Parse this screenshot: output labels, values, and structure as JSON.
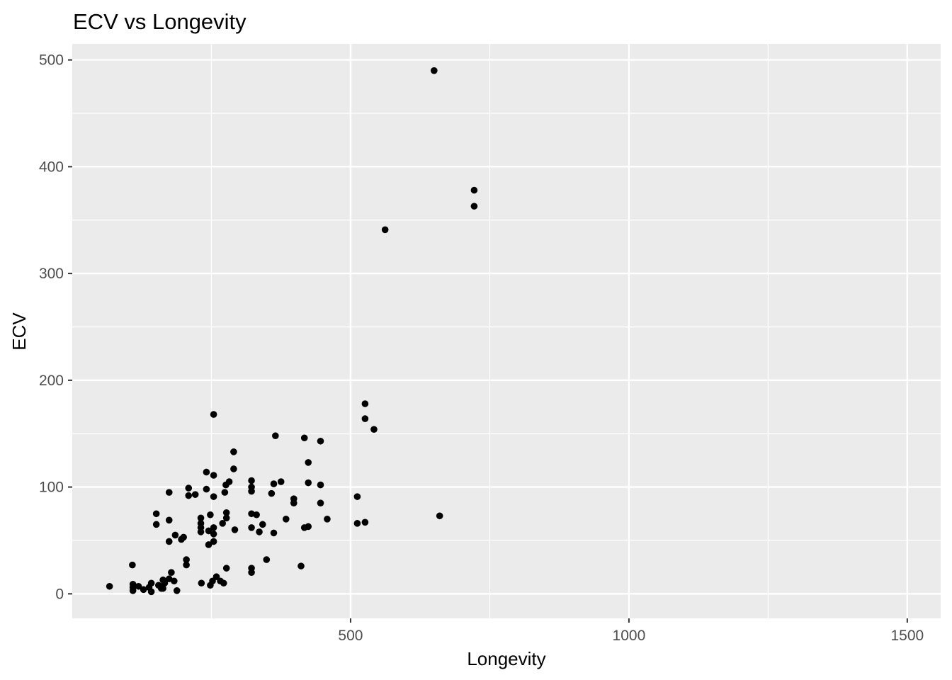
{
  "chart_data": {
    "type": "scatter",
    "title": "ECV vs Longevity",
    "xlabel": "Longevity",
    "ylabel": "ECV",
    "xlim": [
      0,
      1560
    ],
    "ylim": [
      -23,
      515
    ],
    "x_major_ticks": [
      500,
      1000,
      1500
    ],
    "x_minor_ticks": [
      250,
      750,
      1250
    ],
    "y_major_ticks": [
      0,
      100,
      200,
      300,
      400,
      500
    ],
    "y_minor_ticks": [
      50,
      150,
      250,
      350,
      450
    ],
    "x_tick_labels": [
      "500",
      "1000",
      "1500"
    ],
    "y_tick_labels": [
      "0",
      "100",
      "200",
      "300",
      "400",
      "500"
    ],
    "grid": true,
    "legend": "none",
    "colors": {
      "panel": "#ebebeb",
      "grid": "#ffffff",
      "point": "#000000"
    },
    "points": [
      {
        "x": 67,
        "y": 7
      },
      {
        "x": 108,
        "y": 27
      },
      {
        "x": 109,
        "y": 9
      },
      {
        "x": 109,
        "y": 6
      },
      {
        "x": 109,
        "y": 3
      },
      {
        "x": 119,
        "y": 7
      },
      {
        "x": 128,
        "y": 4
      },
      {
        "x": 138,
        "y": 6
      },
      {
        "x": 142,
        "y": 2
      },
      {
        "x": 142,
        "y": 10
      },
      {
        "x": 151,
        "y": 75
      },
      {
        "x": 151,
        "y": 65
      },
      {
        "x": 155,
        "y": 8
      },
      {
        "x": 160,
        "y": 5
      },
      {
        "x": 163,
        "y": 13
      },
      {
        "x": 163,
        "y": 5
      },
      {
        "x": 166,
        "y": 10
      },
      {
        "x": 174,
        "y": 95
      },
      {
        "x": 174,
        "y": 69
      },
      {
        "x": 174,
        "y": 49
      },
      {
        "x": 174,
        "y": 14
      },
      {
        "x": 178,
        "y": 20
      },
      {
        "x": 183,
        "y": 12
      },
      {
        "x": 185,
        "y": 55
      },
      {
        "x": 188,
        "y": 3
      },
      {
        "x": 196,
        "y": 51
      },
      {
        "x": 200,
        "y": 53
      },
      {
        "x": 205,
        "y": 27
      },
      {
        "x": 205,
        "y": 32
      },
      {
        "x": 209,
        "y": 99
      },
      {
        "x": 209,
        "y": 92
      },
      {
        "x": 221,
        "y": 93
      },
      {
        "x": 231,
        "y": 71
      },
      {
        "x": 231,
        "y": 66
      },
      {
        "x": 231,
        "y": 62
      },
      {
        "x": 231,
        "y": 58
      },
      {
        "x": 232,
        "y": 10
      },
      {
        "x": 241,
        "y": 114
      },
      {
        "x": 241,
        "y": 98
      },
      {
        "x": 245,
        "y": 59
      },
      {
        "x": 245,
        "y": 46
      },
      {
        "x": 248,
        "y": 74
      },
      {
        "x": 248,
        "y": 8
      },
      {
        "x": 252,
        "y": 12
      },
      {
        "x": 254,
        "y": 168
      },
      {
        "x": 254,
        "y": 111
      },
      {
        "x": 254,
        "y": 91
      },
      {
        "x": 254,
        "y": 62
      },
      {
        "x": 254,
        "y": 56
      },
      {
        "x": 254,
        "y": 49
      },
      {
        "x": 259,
        "y": 16
      },
      {
        "x": 266,
        "y": 12
      },
      {
        "x": 270,
        "y": 66
      },
      {
        "x": 272,
        "y": 10
      },
      {
        "x": 274,
        "y": 95
      },
      {
        "x": 276,
        "y": 102
      },
      {
        "x": 277,
        "y": 76
      },
      {
        "x": 277,
        "y": 71
      },
      {
        "x": 277,
        "y": 24
      },
      {
        "x": 282,
        "y": 105
      },
      {
        "x": 290,
        "y": 133
      },
      {
        "x": 290,
        "y": 117
      },
      {
        "x": 292,
        "y": 60
      },
      {
        "x": 322,
        "y": 106
      },
      {
        "x": 322,
        "y": 100
      },
      {
        "x": 322,
        "y": 96
      },
      {
        "x": 322,
        "y": 75
      },
      {
        "x": 322,
        "y": 62
      },
      {
        "x": 322,
        "y": 24
      },
      {
        "x": 322,
        "y": 20
      },
      {
        "x": 331,
        "y": 74
      },
      {
        "x": 336,
        "y": 58
      },
      {
        "x": 342,
        "y": 65
      },
      {
        "x": 349,
        "y": 32
      },
      {
        "x": 358,
        "y": 94
      },
      {
        "x": 362,
        "y": 103
      },
      {
        "x": 362,
        "y": 57
      },
      {
        "x": 365,
        "y": 148
      },
      {
        "x": 375,
        "y": 105
      },
      {
        "x": 384,
        "y": 70
      },
      {
        "x": 398,
        "y": 89
      },
      {
        "x": 398,
        "y": 85
      },
      {
        "x": 411,
        "y": 26
      },
      {
        "x": 417,
        "y": 146
      },
      {
        "x": 417,
        "y": 62
      },
      {
        "x": 424,
        "y": 123
      },
      {
        "x": 424,
        "y": 104
      },
      {
        "x": 424,
        "y": 63
      },
      {
        "x": 446,
        "y": 143
      },
      {
        "x": 446,
        "y": 102
      },
      {
        "x": 446,
        "y": 85
      },
      {
        "x": 458,
        "y": 70
      },
      {
        "x": 512,
        "y": 91
      },
      {
        "x": 512,
        "y": 66
      },
      {
        "x": 526,
        "y": 178
      },
      {
        "x": 526,
        "y": 164
      },
      {
        "x": 526,
        "y": 67
      },
      {
        "x": 542,
        "y": 154
      },
      {
        "x": 562,
        "y": 341
      },
      {
        "x": 650,
        "y": 490
      },
      {
        "x": 660,
        "y": 73
      },
      {
        "x": 722,
        "y": 378
      },
      {
        "x": 722,
        "y": 363
      }
    ]
  }
}
